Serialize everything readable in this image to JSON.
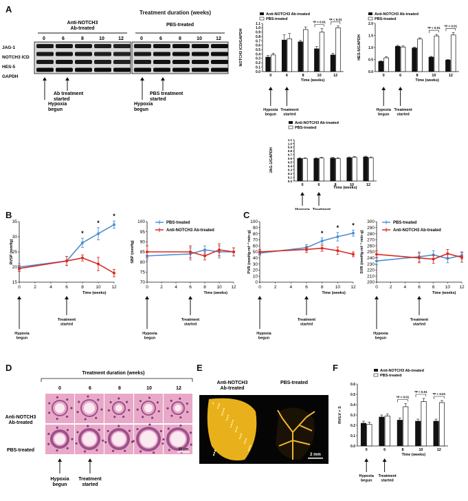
{
  "panels": {
    "A": "A",
    "B": "B",
    "C": "C",
    "D": "D",
    "E": "E",
    "F": "F"
  },
  "blot": {
    "title": "Treatment duration (weeks)",
    "group1": "Anti-NOTCH3\nAb-treated",
    "group2": "PBS-treated",
    "timepoints": [
      "0",
      "6",
      "8",
      "10",
      "12"
    ],
    "rows": [
      "JAG-1",
      "NOTCH3 ICD",
      "HES-5",
      "GAPDH"
    ],
    "arrow1": "Hypoxia\nbegun",
    "arrow2": "Ab treatment\nstarted",
    "arrow3": "PBS treatment\nstarted",
    "arrow4": "Hypoxia\nbegun"
  },
  "common": {
    "legend_anti": "Anti-NOTCH3 Ab-treated",
    "legend_pbs": "PBS-treated",
    "xlabel": "Time (weeks)",
    "hypoxia": "Hypoxia\nbegun",
    "treatment": "Treatment\nstarted"
  },
  "chart_data": [
    {
      "id": "A-notch3",
      "type": "bar",
      "ylabel": "NOTCH3 ICD/GAPDH",
      "xlabel": "Time (weeks)",
      "categories": [
        "0",
        "6",
        "8",
        "10",
        "12"
      ],
      "ylim": [
        0,
        1.1
      ],
      "yticks": [
        "0.0",
        "0.1",
        "0.2",
        "0.3",
        "0.4",
        "0.5",
        "0.6",
        "0.7",
        "0.8",
        "0.9",
        "1.0",
        "1.1"
      ],
      "series": [
        {
          "name": "Anti-NOTCH3 Ab-treated",
          "values": [
            0.33,
            0.72,
            0.68,
            0.52,
            0.38
          ],
          "errors": [
            0.04,
            0.12,
            0.03,
            0.05,
            0.04
          ]
        },
        {
          "name": "PBS-treated",
          "values": [
            0.38,
            0.75,
            0.96,
            0.9,
            1.0
          ],
          "errors": [
            0.04,
            0.12,
            0.06,
            0.08,
            0.04
          ]
        }
      ],
      "annotations": [
        "*P < 0.01",
        "*P < 0.01"
      ]
    },
    {
      "id": "A-hes5",
      "type": "bar",
      "ylabel": "HES-5/GAPDH",
      "xlabel": "Time (weeks)",
      "categories": [
        "0",
        "6",
        "8",
        "10",
        "12"
      ],
      "ylim": [
        0,
        2.0
      ],
      "yticks": [
        "0.0",
        "0.5",
        "1.0",
        "1.5",
        "2.0"
      ],
      "series": [
        {
          "name": "Anti-NOTCH3 Ab-treated",
          "values": [
            0.42,
            1.05,
            0.98,
            0.6,
            0.48
          ],
          "errors": [
            0.03,
            0.04,
            0.04,
            0.03,
            0.02
          ]
        },
        {
          "name": "PBS-treated",
          "values": [
            0.57,
            1.02,
            1.35,
            1.48,
            1.52
          ],
          "errors": [
            0.05,
            0.05,
            0.05,
            0.06,
            0.1
          ]
        }
      ],
      "annotations": [
        "*P < 0.01",
        "*P < 0.01"
      ]
    },
    {
      "id": "A-jag1",
      "type": "bar",
      "ylabel": "JAG-1/GAPDH",
      "xlabel": "Time (weeks)",
      "categories": [
        "0",
        "6",
        "8",
        "10",
        "12"
      ],
      "ylim": [
        0,
        1.1
      ],
      "yticks": [
        "0.0",
        "0.1",
        "0.2",
        "0.3",
        "0.4",
        "0.5",
        "0.6",
        "0.7",
        "0.8",
        "0.9",
        "1.0",
        "1.1"
      ],
      "series": [
        {
          "name": "Anti-NOTCH3 Ab-treated",
          "values": [
            0.6,
            0.6,
            0.61,
            0.62,
            0.64
          ],
          "errors": [
            0.02,
            0.02,
            0.02,
            0.02,
            0.02
          ]
        },
        {
          "name": "PBS-treated",
          "values": [
            0.6,
            0.61,
            0.6,
            0.63,
            0.62
          ],
          "errors": [
            0.02,
            0.02,
            0.02,
            0.02,
            0.02
          ]
        }
      ]
    },
    {
      "id": "B-rvsp",
      "type": "line",
      "ylabel": "RVSP (mmHg)",
      "xlabel": "Time (weeks)",
      "x": [
        0,
        6,
        8,
        10,
        12
      ],
      "xlim": [
        0,
        12
      ],
      "ylim": [
        15,
        35
      ],
      "yticks": [
        15,
        20,
        25,
        30,
        35
      ],
      "xticks": [
        0,
        2,
        4,
        6,
        8,
        10,
        12
      ],
      "series": [
        {
          "name": "PBS-treated",
          "values": [
            20,
            22,
            28,
            31,
            34
          ],
          "errors": [
            1,
            1.5,
            1.5,
            2,
            1.2
          ]
        },
        {
          "name": "Anti-NOTCH3 Ab-treated",
          "values": [
            19.5,
            22,
            23,
            21,
            18
          ],
          "errors": [
            1,
            1.5,
            1,
            2.2,
            1.2
          ]
        }
      ],
      "annotations": [
        "*",
        "*",
        "*"
      ]
    },
    {
      "id": "B-sbp",
      "type": "line",
      "ylabel": "SBP (mmHg)",
      "xlabel": "Time (weeks)",
      "x": [
        0,
        6,
        8,
        10,
        12
      ],
      "xlim": [
        0,
        12
      ],
      "ylim": [
        70,
        100
      ],
      "yticks": [
        70,
        75,
        80,
        85,
        90,
        95,
        100
      ],
      "xticks": [
        0,
        2,
        4,
        6,
        8,
        10,
        12
      ],
      "series": [
        {
          "name": "PBS-treated",
          "values": [
            83,
            84,
            86,
            85,
            85
          ],
          "errors": [
            2,
            3,
            2,
            3,
            2
          ]
        },
        {
          "name": "Anti-NOTCH3 Ab-treated",
          "values": [
            85,
            85,
            83,
            86,
            85
          ],
          "errors": [
            3,
            3,
            2,
            3,
            2
          ]
        }
      ]
    },
    {
      "id": "C-pvr",
      "type": "line",
      "ylabel": "PVR (mmHg·ml⁻¹·min·g)",
      "xlabel": "Time (weeks)",
      "x": [
        0,
        6,
        8,
        10,
        12
      ],
      "xlim": [
        0,
        12
      ],
      "ylim": [
        0,
        100
      ],
      "yticks": [
        0,
        10,
        20,
        30,
        40,
        50,
        60,
        70,
        80,
        90,
        100
      ],
      "xticks": [
        0,
        2,
        4,
        6,
        8,
        10,
        12
      ],
      "series": [
        {
          "name": "PBS-treated",
          "values": [
            48,
            57,
            68,
            75,
            81
          ],
          "errors": [
            4,
            5,
            5,
            7,
            5
          ]
        },
        {
          "name": "Anti-NOTCH3 Ab-treated",
          "values": [
            50,
            54,
            56,
            52,
            46
          ],
          "errors": [
            4,
            5,
            5,
            6,
            4
          ]
        }
      ],
      "annotations": [
        "*",
        "*",
        "*"
      ]
    },
    {
      "id": "C-svr",
      "type": "line",
      "ylabel": "SVR (mmHg·ml⁻¹·min·g)",
      "xlabel": "Time (weeks)",
      "x": [
        0,
        6,
        8,
        10,
        12
      ],
      "xlim": [
        0,
        12
      ],
      "ylim": [
        200,
        300
      ],
      "yticks": [
        200,
        210,
        220,
        230,
        240,
        250,
        260,
        270,
        280,
        290,
        300
      ],
      "xticks": [
        0,
        2,
        4,
        6,
        8,
        10,
        12
      ],
      "series": [
        {
          "name": "PBS-treated",
          "values": [
            235,
            242,
            245,
            239,
            244
          ],
          "errors": [
            6,
            8,
            7,
            7,
            6
          ]
        },
        {
          "name": "Anti-NOTCH3 Ab-treated",
          "values": [
            246,
            240,
            238,
            247,
            241
          ],
          "errors": [
            6,
            8,
            7,
            7,
            8
          ]
        }
      ]
    },
    {
      "id": "F-rvlv",
      "type": "bar",
      "ylabel": "RV/LV + S",
      "xlabel": "Time (weeks)",
      "categories": [
        "0",
        "6",
        "8",
        "10",
        "12"
      ],
      "ylim": [
        0,
        0.6
      ],
      "yticks": [
        "0.0",
        "0.1",
        "0.2",
        "0.3",
        "0.4",
        "0.5",
        "0.6"
      ],
      "series": [
        {
          "name": "Anti-NOTCH3 Ab-treated",
          "values": [
            0.22,
            0.28,
            0.25,
            0.24,
            0.24
          ],
          "errors": [
            0.02,
            0.02,
            0.02,
            0.02,
            0.02
          ]
        },
        {
          "name": "PBS-treated",
          "values": [
            0.21,
            0.29,
            0.38,
            0.43,
            0.42
          ],
          "errors": [
            0.02,
            0.02,
            0.03,
            0.03,
            0.02
          ]
        }
      ],
      "annotations": [
        "*P < 0.01",
        "*P < 0.01",
        "*P < 0.01"
      ]
    }
  ],
  "histology": {
    "title": "Treatment duration (weeks)",
    "timepoints": [
      "0",
      "6",
      "8",
      "10",
      "12"
    ],
    "row1": "Anti-NOTCH3\nAb-treated",
    "row2": "PBS-treated",
    "scale": "25 μm",
    "arrow1": "Hypoxia\nbegun",
    "arrow2": "Treatment\nstarted"
  },
  "angio": {
    "left": "Anti-NOTCH3\nAb-treated",
    "right": "PBS-treated",
    "scale": "2 mm"
  },
  "colors": {
    "blue": "#4a90d0",
    "red": "#d92a22",
    "black": "#111111",
    "he_pink": "#e8a9c8",
    "he_purple": "#8a3b7c"
  }
}
